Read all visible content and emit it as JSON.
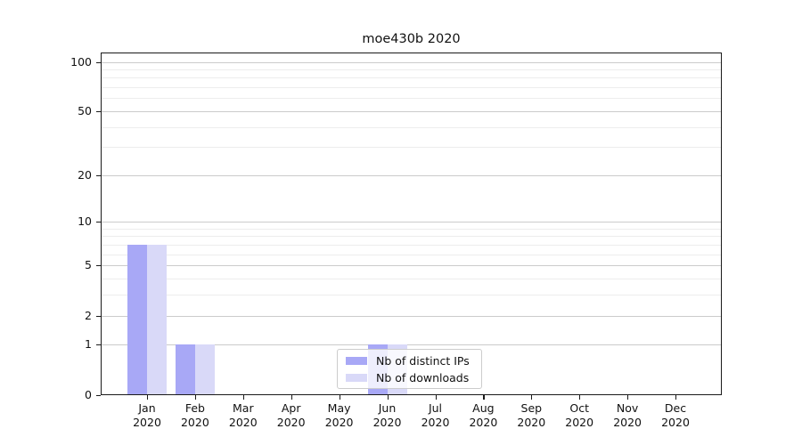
{
  "title": "moe430b 2020",
  "chart_data": {
    "type": "bar",
    "title": "moe430b 2020",
    "categories": [
      "Jan 2020",
      "Feb 2020",
      "Mar 2020",
      "Apr 2020",
      "May 2020",
      "Jun 2020",
      "Jul 2020",
      "Aug 2020",
      "Sep 2020",
      "Oct 2020",
      "Nov 2020",
      "Dec 2020"
    ],
    "series": [
      {
        "name": "Nb of distinct IPs",
        "color": "#a8a8f6",
        "values": [
          7,
          1,
          0,
          0,
          0,
          1,
          0,
          0,
          0,
          0,
          0,
          0
        ]
      },
      {
        "name": "Nb of downloads",
        "color": "#d9d9f8",
        "values": [
          7,
          1,
          0,
          0,
          0,
          1,
          0,
          0,
          0,
          0,
          0,
          0
        ]
      }
    ],
    "xlabel": "",
    "ylabel": "",
    "y_scale": "log1p",
    "ylim": [
      0,
      114
    ],
    "yticks": [
      0,
      1,
      2,
      5,
      10,
      20,
      50,
      100
    ],
    "minor_gridlines": [
      3,
      4,
      6,
      7,
      8,
      9,
      30,
      40,
      60,
      70,
      80,
      90
    ],
    "grid": "horizontal",
    "legend_position": "lower center"
  },
  "colors": {
    "background": "#ffffff",
    "axis": "#1a1a1a",
    "major_grid": "#cbcbcb",
    "minor_grid": "#ededed",
    "text": "#111111"
  }
}
